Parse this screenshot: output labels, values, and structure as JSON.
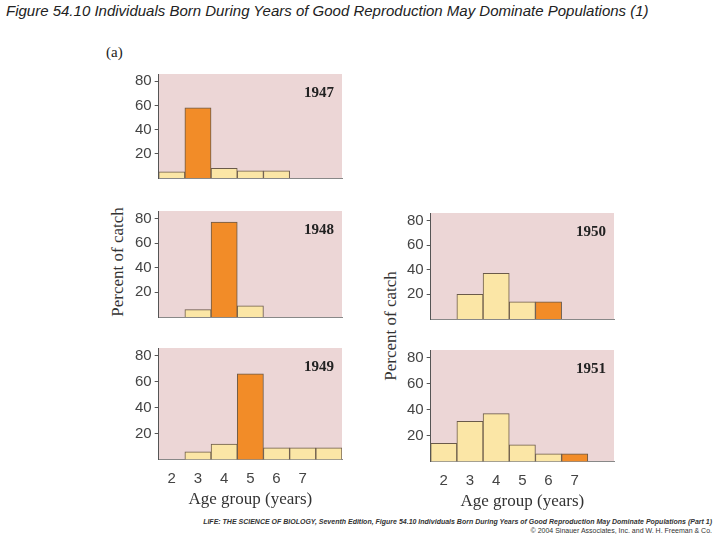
{
  "header": "Figure 54.10 Individuals Born During Years of Good Reproduction May Dominate Populations (1)",
  "panel_label": "(a)",
  "footer": [
    "LIFE: THE SCIENCE OF BIOLOGY, Seventh Edition, Figure 54.10 Individuals Born During Years of Good Reproduction May Dominate Populations (Part 1)",
    "© 2004 Sinauer Associates, Inc. and W. H. Freeman & Co."
  ],
  "chart_data": [
    {
      "type": "bar",
      "title": "1947",
      "categories": [
        "2",
        "3",
        "4",
        "5",
        "6",
        "7",
        null
      ],
      "values": [
        5,
        58,
        8,
        6,
        6,
        null,
        null
      ],
      "colors": [
        "#fbe6a6",
        "#f28c28",
        "#fbe6a6",
        "#fbe6a6",
        "#fbe6a6",
        "#fbe6a6",
        "#fbe6a6"
      ],
      "ylim": [
        0,
        86
      ],
      "yticks": [
        20,
        40,
        60,
        80
      ],
      "grid": false,
      "tick_labels": "y"
    },
    {
      "type": "bar",
      "title": "1948",
      "categories": [
        "2",
        "3",
        "4",
        "5",
        "6",
        "7",
        null
      ],
      "values": [
        null,
        6,
        77,
        9,
        null,
        null,
        null
      ],
      "colors": [
        "#fbe6a6",
        "#fbe6a6",
        "#f28c28",
        "#fbe6a6",
        "#fbe6a6",
        "#fbe6a6",
        "#fbe6a6"
      ],
      "ylim": [
        0,
        86
      ],
      "yticks": [
        20,
        40,
        60,
        80
      ],
      "grid": false,
      "tick_labels": "y",
      "ylabel": "Percent of catch"
    },
    {
      "type": "bar",
      "title": "1949",
      "categories": [
        "2",
        "3",
        "4",
        "5",
        "6",
        "7",
        null
      ],
      "values": [
        null,
        6,
        12,
        66,
        9,
        9,
        9
      ],
      "colors": [
        "#fbe6a6",
        "#fbe6a6",
        "#fbe6a6",
        "#f28c28",
        "#fbe6a6",
        "#fbe6a6",
        "#fbe6a6"
      ],
      "ylim": [
        0,
        86
      ],
      "yticks": [
        20,
        40,
        60,
        80
      ],
      "grid": false,
      "xlabel": "Age group (years)"
    },
    {
      "type": "bar",
      "title": "1950",
      "categories": [
        "2",
        "3",
        "4",
        "5",
        "6",
        "7",
        null
      ],
      "values": [
        null,
        20,
        37,
        14,
        14,
        null,
        null
      ],
      "colors": [
        "#fbe6a6",
        "#fbe6a6",
        "#fbe6a6",
        "#fbe6a6",
        "#f28c28",
        "#fbe6a6",
        "#fbe6a6"
      ],
      "ylim": [
        0,
        86
      ],
      "yticks": [
        20,
        40,
        60,
        80
      ],
      "grid": false,
      "tick_labels": "y",
      "ylabel": "Percent of catch"
    },
    {
      "type": "bar",
      "title": "1951",
      "categories": [
        "2",
        "3",
        "4",
        "5",
        "6",
        "7",
        null
      ],
      "values": [
        14,
        31,
        37,
        13,
        6,
        6,
        null
      ],
      "colors": [
        "#fbe6a6",
        "#fbe6a6",
        "#fbe6a6",
        "#fbe6a6",
        "#fbe6a6",
        "#f28c28",
        "#fbe6a6"
      ],
      "ylim": [
        0,
        86
      ],
      "yticks": [
        20,
        40,
        60,
        80
      ],
      "grid": false,
      "xlabel": "Age group (years)"
    }
  ]
}
